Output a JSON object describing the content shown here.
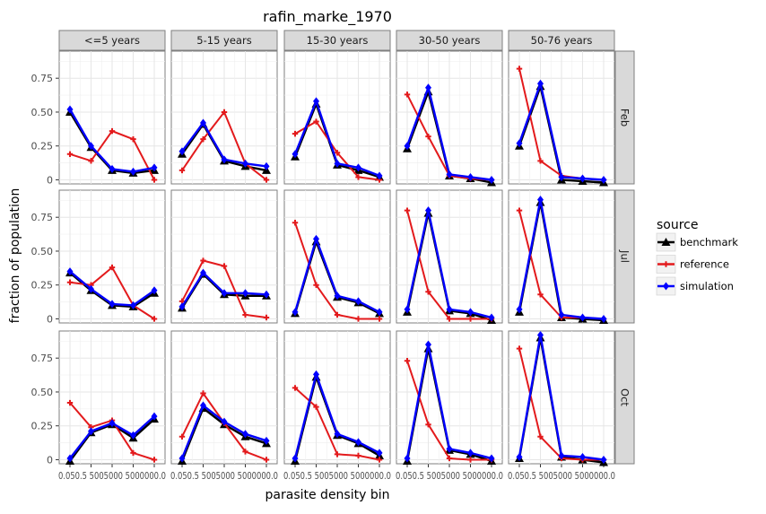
{
  "chart_data": {
    "type": "line",
    "title": "rafin_marke_1970",
    "xlabel": "parasite density bin",
    "ylabel": "fraction of population",
    "x_tick_label_text": "0.050.5 5005000 5000000.0",
    "y_ticks": [
      "0",
      "0.25",
      "0.50",
      "0.75"
    ],
    "ylim": [
      -0.03,
      0.95
    ],
    "x_bins": 5,
    "column_facets": [
      "<=5 years",
      "5-15 years",
      "15-30 years",
      "30-50 years",
      "50-76 years"
    ],
    "row_facets": [
      "Feb",
      "Jul",
      "Oct"
    ],
    "legend": {
      "title": "source",
      "placement": "right",
      "entries": [
        {
          "label": "benchmark",
          "color": "#000000",
          "marker": "triangle"
        },
        {
          "label": "reference",
          "color": "#e31a1c",
          "marker": "plus"
        },
        {
          "label": "simulation",
          "color": "#0000ff",
          "marker": "diamond"
        }
      ]
    },
    "panels": [
      {
        "row": "Feb",
        "col": "<=5 years",
        "benchmark": [
          0.5,
          0.24,
          0.07,
          0.05,
          0.07
        ],
        "reference": [
          0.19,
          0.14,
          0.36,
          0.3,
          0.0
        ],
        "simulation": [
          0.52,
          0.25,
          0.08,
          0.06,
          0.09
        ]
      },
      {
        "row": "Feb",
        "col": "5-15 years",
        "benchmark": [
          0.19,
          0.41,
          0.14,
          0.1,
          0.07
        ],
        "reference": [
          0.07,
          0.3,
          0.5,
          0.12,
          0.0
        ],
        "simulation": [
          0.21,
          0.42,
          0.15,
          0.12,
          0.1
        ]
      },
      {
        "row": "Feb",
        "col": "15-30 years",
        "benchmark": [
          0.17,
          0.56,
          0.11,
          0.07,
          0.02
        ],
        "reference": [
          0.34,
          0.43,
          0.2,
          0.02,
          0.0
        ],
        "simulation": [
          0.19,
          0.58,
          0.12,
          0.09,
          0.03
        ]
      },
      {
        "row": "Feb",
        "col": "30-50 years",
        "benchmark": [
          0.23,
          0.65,
          0.03,
          0.01,
          -0.02
        ],
        "reference": [
          0.63,
          0.32,
          0.03,
          0.01,
          0.0
        ],
        "simulation": [
          0.25,
          0.68,
          0.04,
          0.02,
          0.0
        ]
      },
      {
        "row": "Feb",
        "col": "50-76 years",
        "benchmark": [
          0.25,
          0.69,
          0.0,
          -0.01,
          -0.02
        ],
        "reference": [
          0.82,
          0.14,
          0.03,
          0.01,
          0.0
        ],
        "simulation": [
          0.27,
          0.71,
          0.02,
          0.01,
          0.0
        ]
      },
      {
        "row": "Jul",
        "col": "<=5 years",
        "benchmark": [
          0.34,
          0.21,
          0.1,
          0.09,
          0.19
        ],
        "reference": [
          0.27,
          0.25,
          0.38,
          0.1,
          0.0
        ],
        "simulation": [
          0.35,
          0.22,
          0.11,
          0.1,
          0.21
        ]
      },
      {
        "row": "Jul",
        "col": "5-15 years",
        "benchmark": [
          0.08,
          0.33,
          0.18,
          0.17,
          0.17
        ],
        "reference": [
          0.13,
          0.43,
          0.39,
          0.03,
          0.01
        ],
        "simulation": [
          0.09,
          0.34,
          0.19,
          0.19,
          0.18
        ]
      },
      {
        "row": "Jul",
        "col": "15-30 years",
        "benchmark": [
          0.04,
          0.57,
          0.16,
          0.12,
          0.04
        ],
        "reference": [
          0.71,
          0.25,
          0.03,
          0.0,
          0.0
        ],
        "simulation": [
          0.05,
          0.59,
          0.17,
          0.13,
          0.05
        ]
      },
      {
        "row": "Jul",
        "col": "30-50 years",
        "benchmark": [
          0.05,
          0.78,
          0.06,
          0.04,
          -0.01
        ],
        "reference": [
          0.8,
          0.2,
          0.0,
          0.0,
          0.0
        ],
        "simulation": [
          0.07,
          0.8,
          0.07,
          0.05,
          0.01
        ]
      },
      {
        "row": "Jul",
        "col": "50-76 years",
        "benchmark": [
          0.05,
          0.86,
          0.01,
          0.0,
          -0.01
        ],
        "reference": [
          0.8,
          0.18,
          0.01,
          0.01,
          0.0
        ],
        "simulation": [
          0.07,
          0.88,
          0.03,
          0.01,
          0.0
        ]
      },
      {
        "row": "Oct",
        "col": "<=5 years",
        "benchmark": [
          -0.01,
          0.2,
          0.26,
          0.16,
          0.3
        ],
        "reference": [
          0.42,
          0.24,
          0.29,
          0.05,
          0.0
        ],
        "simulation": [
          0.01,
          0.21,
          0.27,
          0.18,
          0.32
        ]
      },
      {
        "row": "Oct",
        "col": "5-15 years",
        "benchmark": [
          -0.01,
          0.38,
          0.26,
          0.17,
          0.12
        ],
        "reference": [
          0.17,
          0.49,
          0.27,
          0.06,
          0.0
        ],
        "simulation": [
          0.01,
          0.4,
          0.28,
          0.19,
          0.14
        ]
      },
      {
        "row": "Oct",
        "col": "15-30 years",
        "benchmark": [
          -0.01,
          0.61,
          0.18,
          0.12,
          0.03
        ],
        "reference": [
          0.53,
          0.39,
          0.04,
          0.03,
          0.0
        ],
        "simulation": [
          0.01,
          0.63,
          0.19,
          0.13,
          0.05
        ]
      },
      {
        "row": "Oct",
        "col": "30-50 years",
        "benchmark": [
          -0.01,
          0.82,
          0.07,
          0.04,
          -0.01
        ],
        "reference": [
          0.73,
          0.26,
          0.01,
          0.0,
          0.0
        ],
        "simulation": [
          0.01,
          0.85,
          0.08,
          0.05,
          0.01
        ]
      },
      {
        "row": "Oct",
        "col": "50-76 years",
        "benchmark": [
          0.01,
          0.9,
          0.02,
          0.0,
          -0.02
        ],
        "reference": [
          0.82,
          0.17,
          0.01,
          0.0,
          0.0
        ],
        "simulation": [
          0.02,
          0.92,
          0.03,
          0.02,
          0.0
        ]
      }
    ]
  }
}
